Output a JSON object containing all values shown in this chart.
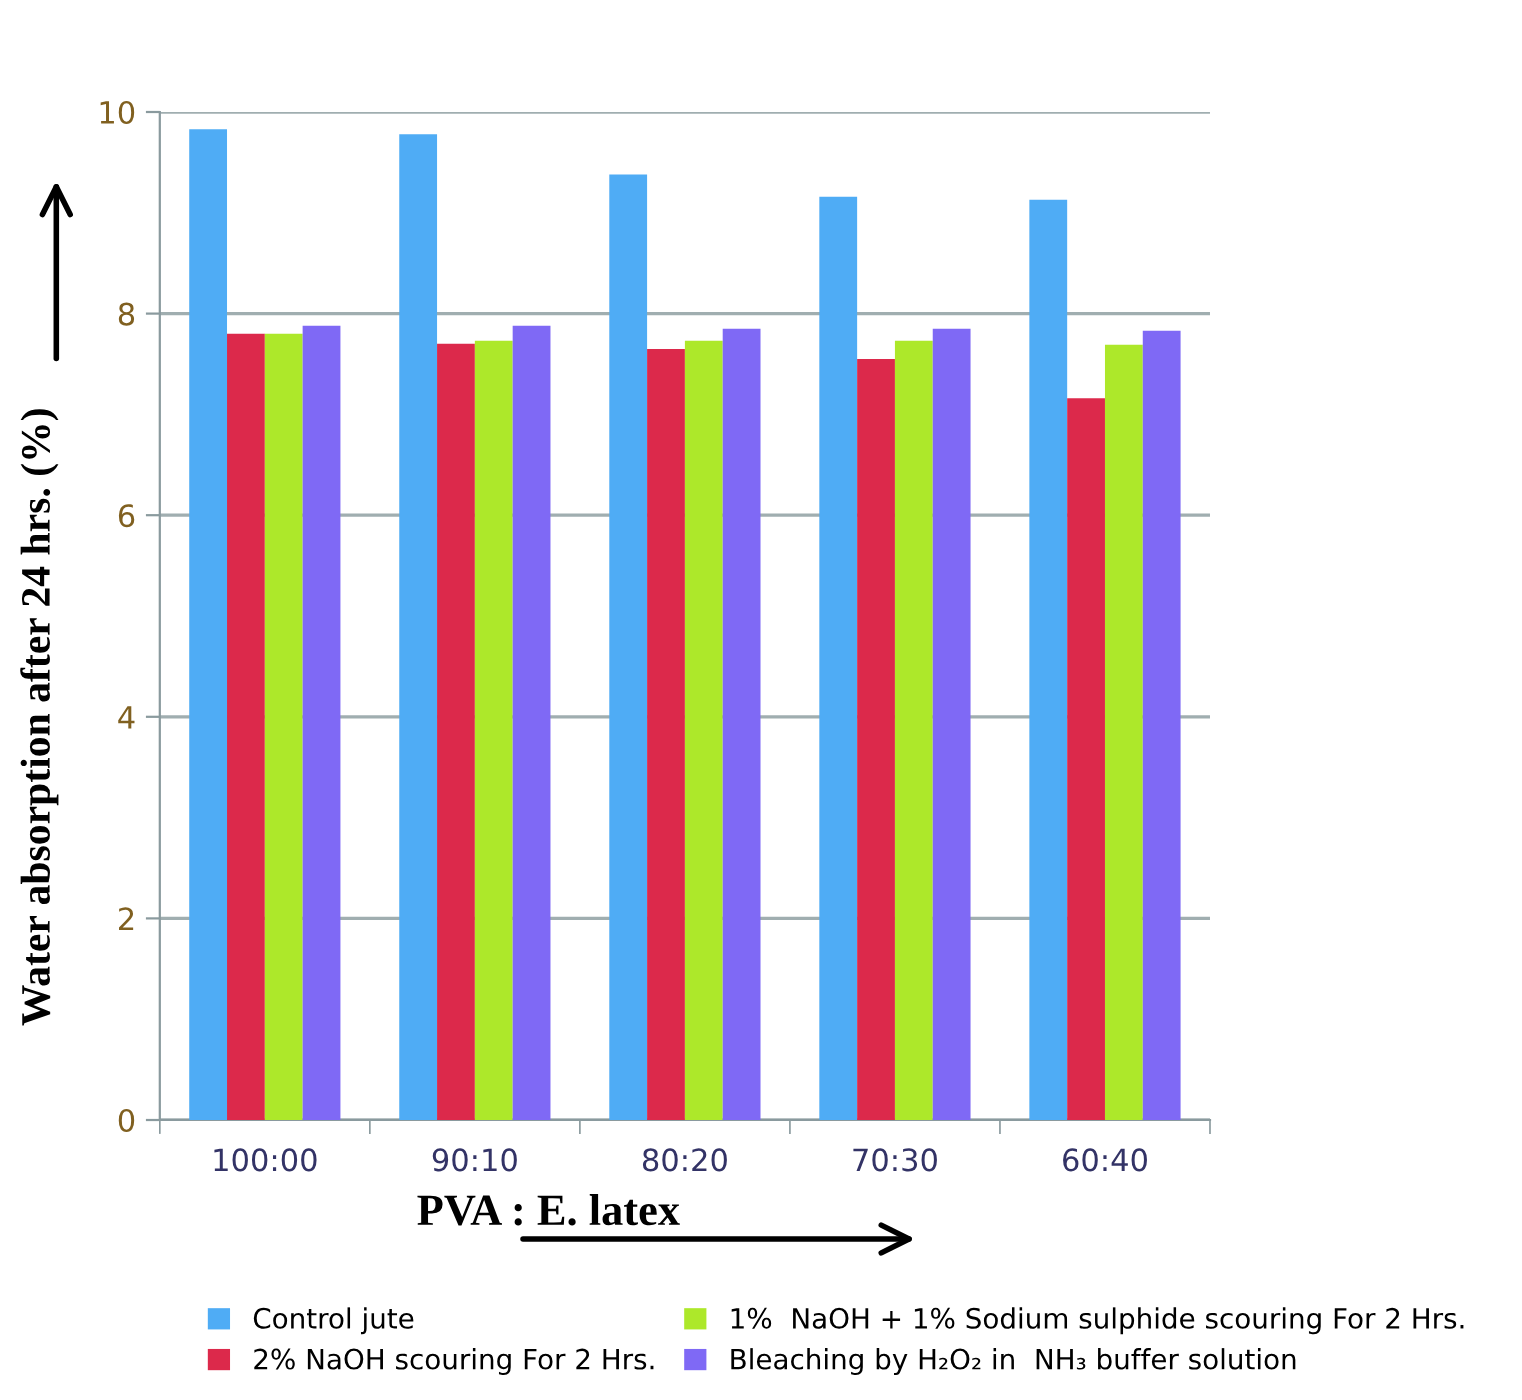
{
  "chart_data": {
    "type": "bar",
    "xlabel": "PVA : E. latex",
    "ylabel": "Water absorption after 24 hrs. (%)",
    "categories": [
      "100:00",
      "90:10",
      "80:20",
      "70:30",
      "60:40"
    ],
    "series": [
      {
        "name": "Control jute",
        "color": "#4facf5",
        "values": [
          9.83,
          9.78,
          9.38,
          9.16,
          9.13
        ]
      },
      {
        "name": "2% NaOH scouring For 2 Hrs.",
        "color": "#dc294b",
        "values": [
          7.8,
          7.7,
          7.65,
          7.55,
          7.16
        ]
      },
      {
        "name": "1%  NaOH + 1% Sodium sulphide scouring For 2 Hrs.",
        "color": "#ade82a",
        "values": [
          7.8,
          7.73,
          7.73,
          7.73,
          7.69
        ]
      },
      {
        "name": "Bleaching by H₂O₂ in  NH₃ buffer solution",
        "color": "#7f69f5",
        "values": [
          7.88,
          7.88,
          7.85,
          7.85,
          7.83
        ]
      }
    ],
    "ylim": [
      0,
      10
    ],
    "yticks": [
      0,
      2,
      4,
      6,
      8,
      10
    ],
    "grid": "y",
    "legend": "bottom"
  }
}
